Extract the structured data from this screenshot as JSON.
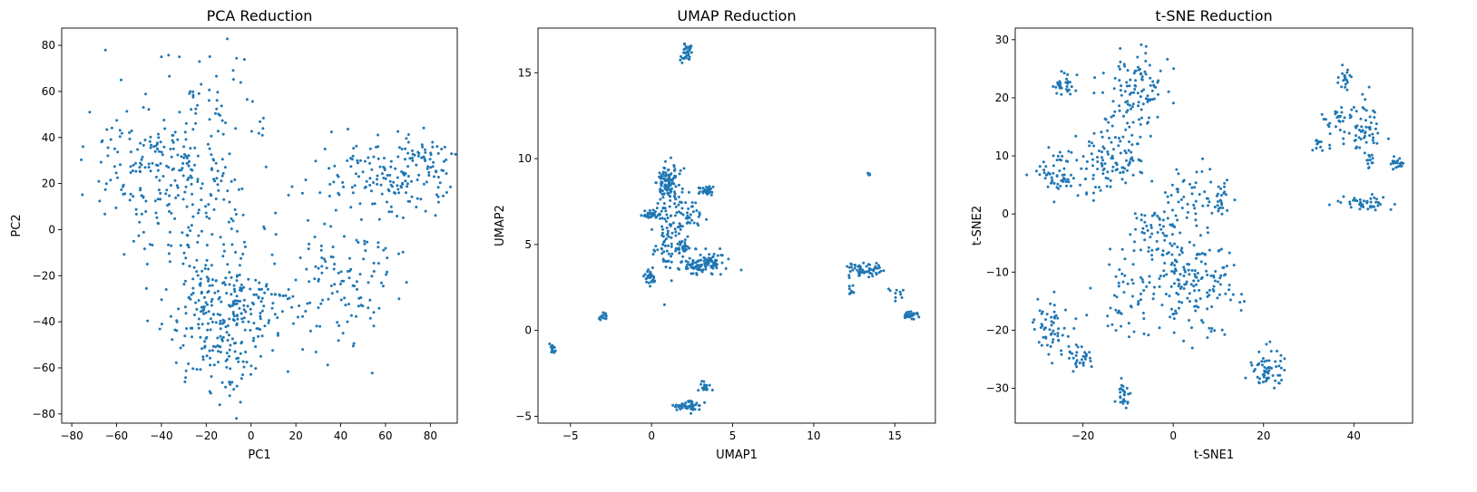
{
  "marker_color": "#1f77b4",
  "chart_data": [
    {
      "type": "scatter",
      "title": "PCA Reduction",
      "xlabel": "PC1",
      "ylabel": "PC2",
      "xlim": [
        -84.5,
        92
      ],
      "ylim": [
        -84,
        87.5
      ],
      "xticks": [
        -80,
        -60,
        -40,
        -20,
        0,
        20,
        40,
        60,
        80
      ],
      "yticks": [
        -80,
        -60,
        -40,
        -20,
        0,
        20,
        40,
        60,
        80
      ],
      "clusters": [
        {
          "cx": -42,
          "cy": 25,
          "sx": 13,
          "sy": 14,
          "n": 190
        },
        {
          "cx": -18,
          "cy": 48,
          "sx": 12,
          "sy": 15,
          "n": 55
        },
        {
          "cx": -20,
          "cy": 8,
          "sx": 12,
          "sy": 14,
          "n": 70
        },
        {
          "cx": -18,
          "cy": -32,
          "sx": 12,
          "sy": 12,
          "n": 170
        },
        {
          "cx": -12,
          "cy": -55,
          "sx": 8,
          "sy": 10,
          "n": 80
        },
        {
          "cx": 5,
          "cy": -30,
          "sx": 12,
          "sy": 10,
          "n": 70
        },
        {
          "cx": 40,
          "cy": -22,
          "sx": 14,
          "sy": 13,
          "n": 110
        },
        {
          "cx": 62,
          "cy": 22,
          "sx": 14,
          "sy": 9,
          "n": 160
        },
        {
          "cx": 78,
          "cy": 32,
          "sx": 6,
          "sy": 5,
          "n": 30
        }
      ],
      "points": [
        {
          "x": -65,
          "y": 78
        },
        {
          "x": -58,
          "y": 65
        },
        {
          "x": -72,
          "y": 51
        },
        {
          "x": -75,
          "y": 36
        },
        {
          "x": -32,
          "y": 75
        },
        {
          "x": -40,
          "y": 75
        },
        {
          "x": -23,
          "y": 73
        },
        {
          "x": 33,
          "y": 35
        },
        {
          "x": 85,
          "y": 35
        },
        {
          "x": -14,
          "y": -76
        },
        {
          "x": -18,
          "y": -71
        },
        {
          "x": 23,
          "y": -52
        },
        {
          "x": 43,
          "y": -40
        },
        {
          "x": 66,
          "y": -30
        },
        {
          "x": 12,
          "y": -45
        }
      ]
    },
    {
      "type": "scatter",
      "title": "UMAP Reduction",
      "xlabel": "UMAP1",
      "ylabel": "UMAP2",
      "xlim": [
        -7.0,
        17.5
      ],
      "ylim": [
        -5.4,
        17.6
      ],
      "xticks": [
        -5,
        0,
        5,
        10,
        15
      ],
      "yticks": [
        -5,
        0,
        5,
        10,
        15
      ],
      "clusters": [
        {
          "cx": 2.2,
          "cy": 16.1,
          "sx": 0.18,
          "sy": 0.25,
          "n": 35
        },
        {
          "cx": 1.0,
          "cy": 8.5,
          "sx": 0.35,
          "sy": 0.6,
          "n": 110
        },
        {
          "cx": 0.0,
          "cy": 6.7,
          "sx": 0.35,
          "sy": 0.12,
          "n": 35
        },
        {
          "cx": 1.0,
          "cy": 5.5,
          "sx": 0.45,
          "sy": 1.2,
          "n": 80
        },
        {
          "cx": 2.2,
          "cy": 6.8,
          "sx": 0.5,
          "sy": 0.5,
          "n": 40
        },
        {
          "cx": 3.5,
          "cy": 8.1,
          "sx": 0.25,
          "sy": 0.15,
          "n": 30
        },
        {
          "cx": 3.1,
          "cy": 3.9,
          "sx": 0.7,
          "sy": 0.3,
          "n": 110
        },
        {
          "cx": -0.1,
          "cy": 3.1,
          "sx": 0.2,
          "sy": 0.25,
          "n": 30
        },
        {
          "cx": 1.9,
          "cy": 4.8,
          "sx": 0.4,
          "sy": 0.2,
          "n": 30
        },
        {
          "cx": -6.1,
          "cy": -1.1,
          "sx": 0.1,
          "sy": 0.12,
          "n": 14
        },
        {
          "cx": -3.0,
          "cy": 0.8,
          "sx": 0.15,
          "sy": 0.12,
          "n": 14
        },
        {
          "cx": 2.3,
          "cy": -4.4,
          "sx": 0.45,
          "sy": 0.15,
          "n": 45
        },
        {
          "cx": 3.3,
          "cy": -3.3,
          "sx": 0.2,
          "sy": 0.2,
          "n": 20
        },
        {
          "cx": 13.4,
          "cy": 9.1,
          "sx": 0.05,
          "sy": 0.05,
          "n": 8
        },
        {
          "cx": 13.2,
          "cy": 3.5,
          "sx": 0.6,
          "sy": 0.22,
          "n": 60
        },
        {
          "cx": 12.3,
          "cy": 2.3,
          "sx": 0.1,
          "sy": 0.2,
          "n": 10
        },
        {
          "cx": 15.1,
          "cy": 2.2,
          "sx": 0.3,
          "sy": 0.3,
          "n": 10
        },
        {
          "cx": 16.0,
          "cy": 0.9,
          "sx": 0.2,
          "sy": 0.12,
          "n": 25
        }
      ],
      "points": []
    },
    {
      "type": "scatter",
      "title": "t-SNE Reduction",
      "xlabel": "t-SNE1",
      "ylabel": "t-SNE2",
      "xlim": [
        -35,
        53
      ],
      "ylim": [
        -36,
        32
      ],
      "xticks": [
        -20,
        0,
        20,
        40
      ],
      "yticks": [
        -30,
        -20,
        -10,
        0,
        10,
        20,
        30
      ],
      "clusters": [
        {
          "cx": -24,
          "cy": 22.5,
          "sx": 1.2,
          "sy": 1.3,
          "n": 30
        },
        {
          "cx": -8,
          "cy": 20,
          "sx": 3.5,
          "sy": 3.5,
          "n": 110
        },
        {
          "cx": -13,
          "cy": 12,
          "sx": 3.0,
          "sy": 3.0,
          "n": 40
        },
        {
          "cx": -25,
          "cy": 7,
          "sx": 2.3,
          "sy": 2.0,
          "n": 60
        },
        {
          "cx": -17,
          "cy": 8,
          "sx": 3.0,
          "sy": 3.0,
          "n": 40
        },
        {
          "cx": -10,
          "cy": 7.5,
          "sx": 1.5,
          "sy": 1.5,
          "n": 25
        },
        {
          "cx": 3,
          "cy": 5,
          "sx": 3.5,
          "sy": 3.0,
          "n": 30
        },
        {
          "cx": 10,
          "cy": 2,
          "sx": 1.8,
          "sy": 2.0,
          "n": 35
        },
        {
          "cx": -3,
          "cy": -4,
          "sx": 4,
          "sy": 4,
          "n": 90
        },
        {
          "cx": 5,
          "cy": -13,
          "sx": 5,
          "sy": 4,
          "n": 140
        },
        {
          "cx": -10,
          "cy": -14,
          "sx": 3,
          "sy": 3,
          "n": 50
        },
        {
          "cx": -27,
          "cy": -19,
          "sx": 2.0,
          "sy": 2.4,
          "n": 55
        },
        {
          "cx": -21,
          "cy": -24.5,
          "sx": 1.6,
          "sy": 1.4,
          "n": 35
        },
        {
          "cx": -11,
          "cy": -31.5,
          "sx": 1.0,
          "sy": 1.0,
          "n": 25
        },
        {
          "cx": 21,
          "cy": -27,
          "sx": 1.6,
          "sy": 1.7,
          "n": 60
        },
        {
          "cx": 38.5,
          "cy": 23,
          "sx": 1.0,
          "sy": 1.0,
          "n": 20
        },
        {
          "cx": 37,
          "cy": 16,
          "sx": 2.0,
          "sy": 2.0,
          "n": 40
        },
        {
          "cx": 43,
          "cy": 15,
          "sx": 1.5,
          "sy": 2.5,
          "n": 45
        },
        {
          "cx": 43.5,
          "cy": 9,
          "sx": 0.6,
          "sy": 0.6,
          "n": 10
        },
        {
          "cx": 49.5,
          "cy": 8.8,
          "sx": 0.8,
          "sy": 0.6,
          "n": 20
        },
        {
          "cx": 43,
          "cy": 2,
          "sx": 2.5,
          "sy": 0.6,
          "n": 45
        },
        {
          "cx": 32,
          "cy": 12,
          "sx": 1.0,
          "sy": 0.6,
          "n": 12
        }
      ],
      "points": []
    }
  ]
}
